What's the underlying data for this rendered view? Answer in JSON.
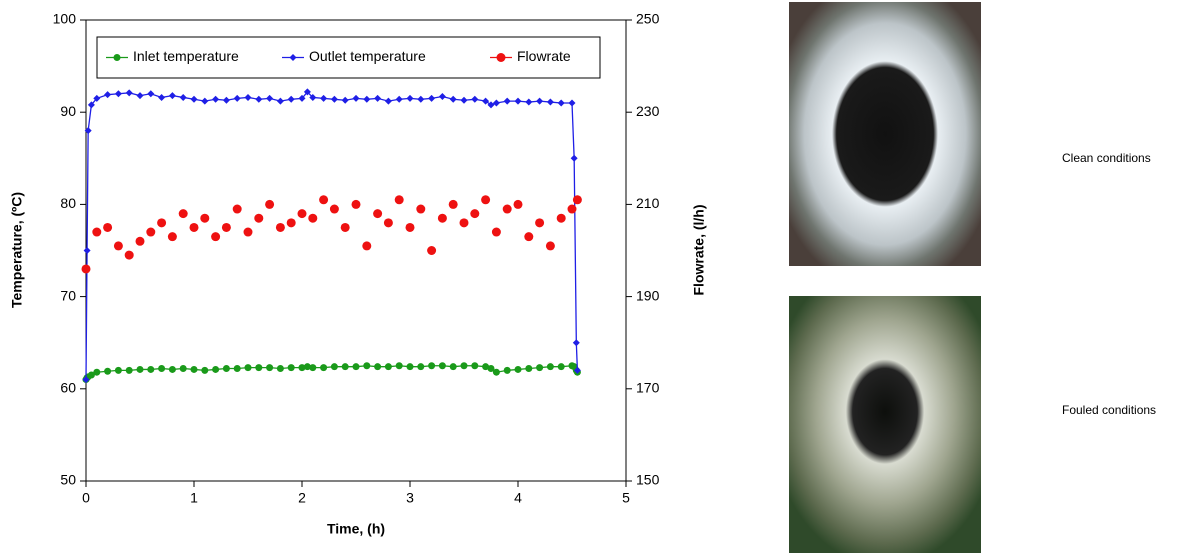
{
  "chart_data": {
    "type": "line",
    "xlabel": "Time, (h)",
    "ylabel": "Temperature, (ºC)",
    "y2label": "Flowrate, (l/h)",
    "xlim": [
      0,
      5
    ],
    "xticks": [
      0,
      1,
      2,
      3,
      4,
      5
    ],
    "ylim": [
      50,
      100
    ],
    "yticks": [
      50,
      60,
      70,
      80,
      90,
      100
    ],
    "y2lim": [
      150,
      250
    ],
    "y2ticks": [
      150,
      170,
      190,
      210,
      230,
      250
    ],
    "legend": "upper center",
    "series": [
      {
        "name": "Inlet temperature",
        "color": "#1a9a1a",
        "marker": "circle",
        "x": [
          0,
          0.01,
          0.02,
          0.05,
          0.1,
          0.2,
          0.3,
          0.4,
          0.5,
          0.6,
          0.7,
          0.8,
          0.9,
          1.0,
          1.1,
          1.2,
          1.3,
          1.4,
          1.5,
          1.6,
          1.7,
          1.8,
          1.9,
          2.0,
          2.05,
          2.1,
          2.2,
          2.3,
          2.4,
          2.5,
          2.6,
          2.7,
          2.8,
          2.9,
          3.0,
          3.1,
          3.2,
          3.3,
          3.4,
          3.5,
          3.6,
          3.7,
          3.75,
          3.8,
          3.9,
          4.0,
          4.1,
          4.2,
          4.3,
          4.4,
          4.5,
          4.52,
          4.54,
          4.55
        ],
        "values": [
          61,
          61.2,
          61.3,
          61.5,
          61.8,
          61.9,
          62,
          62,
          62.1,
          62.1,
          62.2,
          62.1,
          62.2,
          62.1,
          62,
          62.1,
          62.2,
          62.2,
          62.3,
          62.3,
          62.3,
          62.2,
          62.3,
          62.3,
          62.4,
          62.3,
          62.3,
          62.4,
          62.4,
          62.4,
          62.5,
          62.4,
          62.4,
          62.5,
          62.4,
          62.4,
          62.5,
          62.5,
          62.4,
          62.5,
          62.5,
          62.4,
          62.2,
          61.8,
          62,
          62.1,
          62.2,
          62.3,
          62.4,
          62.4,
          62.5,
          62.4,
          62,
          61.8
        ]
      },
      {
        "name": "Outlet temperature",
        "color": "#1f1fe6",
        "marker": "diamond",
        "x": [
          0,
          0.01,
          0.02,
          0.05,
          0.1,
          0.2,
          0.3,
          0.4,
          0.5,
          0.6,
          0.7,
          0.8,
          0.9,
          1.0,
          1.1,
          1.2,
          1.3,
          1.4,
          1.5,
          1.6,
          1.7,
          1.8,
          1.9,
          2.0,
          2.05,
          2.1,
          2.2,
          2.3,
          2.4,
          2.5,
          2.6,
          2.7,
          2.8,
          2.9,
          3.0,
          3.1,
          3.2,
          3.3,
          3.4,
          3.5,
          3.6,
          3.7,
          3.75,
          3.8,
          3.9,
          4.0,
          4.1,
          4.2,
          4.3,
          4.4,
          4.5,
          4.52,
          4.54,
          4.55
        ],
        "values": [
          61,
          75,
          88,
          90.8,
          91.5,
          91.9,
          92,
          92.1,
          91.8,
          92,
          91.6,
          91.8,
          91.6,
          91.4,
          91.2,
          91.4,
          91.3,
          91.5,
          91.6,
          91.4,
          91.5,
          91.2,
          91.4,
          91.5,
          92.2,
          91.6,
          91.5,
          91.4,
          91.3,
          91.5,
          91.4,
          91.5,
          91.2,
          91.4,
          91.5,
          91.4,
          91.5,
          91.7,
          91.4,
          91.3,
          91.4,
          91.2,
          90.8,
          91,
          91.2,
          91.2,
          91.1,
          91.2,
          91.1,
          91,
          91,
          85,
          65,
          62
        ]
      },
      {
        "name": "Flowrate",
        "color": "#ee1111",
        "marker": "circle",
        "type": "scatter",
        "axis": "y2",
        "x": [
          0,
          0.1,
          0.2,
          0.3,
          0.4,
          0.5,
          0.6,
          0.7,
          0.8,
          0.9,
          1.0,
          1.1,
          1.2,
          1.3,
          1.4,
          1.5,
          1.6,
          1.7,
          1.8,
          1.9,
          2.0,
          2.1,
          2.2,
          2.3,
          2.4,
          2.5,
          2.6,
          2.7,
          2.8,
          2.9,
          3.0,
          3.1,
          3.2,
          3.3,
          3.4,
          3.5,
          3.6,
          3.7,
          3.8,
          3.9,
          4.0,
          4.1,
          4.2,
          4.3,
          4.4,
          4.5,
          4.55
        ],
        "values": [
          196,
          204,
          205,
          201,
          199,
          202,
          204,
          206,
          203,
          208,
          205,
          207,
          203,
          205,
          209,
          204,
          207,
          210,
          205,
          206,
          208,
          207,
          211,
          209,
          205,
          210,
          201,
          208,
          206,
          211,
          205,
          209,
          200,
          207,
          210,
          206,
          208,
          211,
          204,
          209,
          210,
          203,
          206,
          201,
          207,
          209,
          211
        ]
      }
    ]
  },
  "images": [
    {
      "caption": "Clean conditions"
    },
    {
      "caption": "Fouled conditions"
    }
  ]
}
